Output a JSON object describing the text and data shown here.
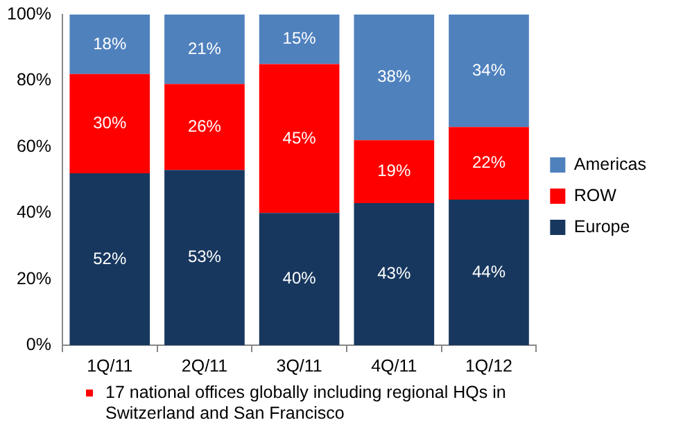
{
  "chart_data": {
    "type": "bar",
    "stacked": true,
    "categories": [
      "1Q/11",
      "2Q/11",
      "3Q/11",
      "4Q/11",
      "1Q/12"
    ],
    "series": [
      {
        "name": "Europe",
        "color": "#17375e",
        "values": [
          52,
          53,
          40,
          43,
          44
        ],
        "value_labels": [
          "52%",
          "53%",
          "40%",
          "43%",
          "44%"
        ]
      },
      {
        "name": "ROW",
        "color": "#ff0000",
        "values": [
          30,
          26,
          45,
          19,
          22
        ],
        "value_labels": [
          "30%",
          "26%",
          "45%",
          "19%",
          "22%"
        ]
      },
      {
        "name": "Americas",
        "color": "#4f81bd",
        "values": [
          18,
          21,
          15,
          38,
          34
        ],
        "value_labels": [
          "18%",
          "21%",
          "15%",
          "38%",
          "34%"
        ]
      }
    ],
    "ylim": [
      0,
      100
    ],
    "yticks": [
      {
        "value": 0,
        "label": "0%"
      },
      {
        "value": 20,
        "label": "20%"
      },
      {
        "value": 40,
        "label": "40%"
      },
      {
        "value": 60,
        "label": "60%"
      },
      {
        "value": 80,
        "label": "80%"
      },
      {
        "value": 100,
        "label": "100%"
      }
    ],
    "grid": false,
    "legend": "right",
    "annotations": [
      "17 national offices globally including regional HQs in Switzerland and San Francisco"
    ]
  }
}
